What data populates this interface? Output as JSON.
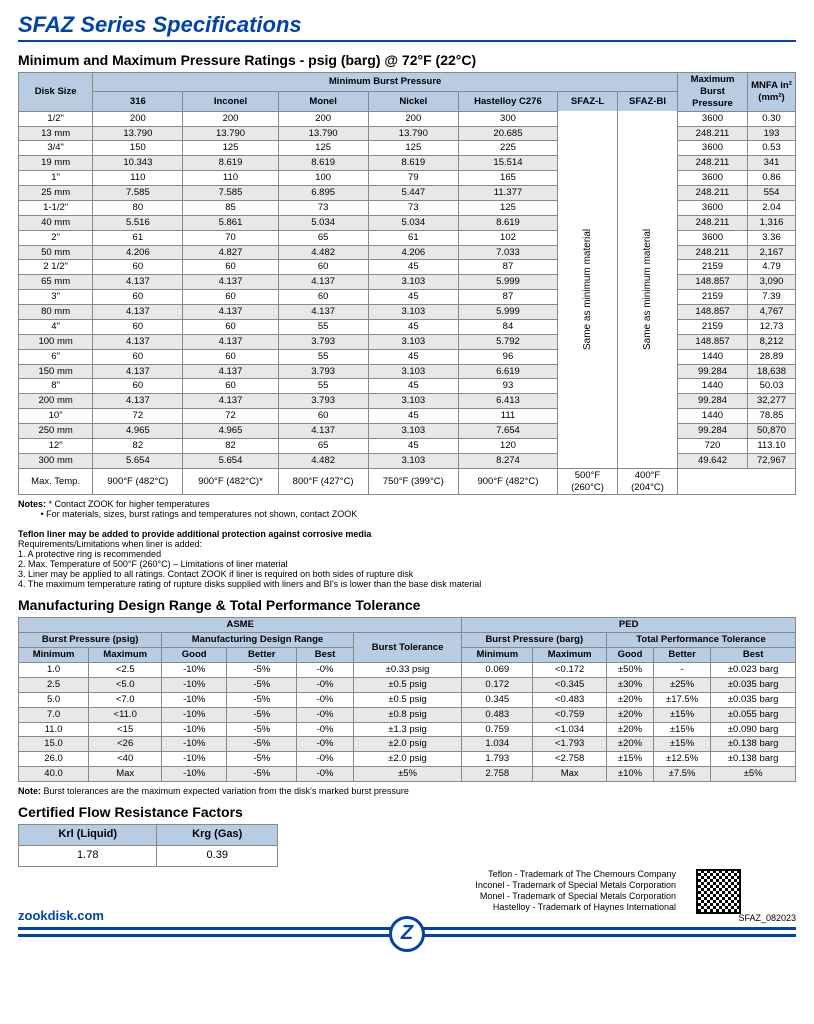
{
  "title": "SFAZ Series Specifications",
  "section1": "Minimum and Maximum Pressure Ratings - psig (barg) @ 72°F (22°C)",
  "t1": {
    "head": {
      "disk": "Disk Size",
      "minbp": "Minimum Burst Pressure",
      "maxbp": "Maximum Burst Pressure",
      "mnfa": "MNFA in² (mm²)",
      "c316": "316",
      "inconel": "Inconel",
      "monel": "Monel",
      "nickel": "Nickel",
      "hc276": "Hastelloy C276",
      "sfazl": "SFAZ-L",
      "sfazbi": "SFAZ-BI"
    },
    "sametext": "Same as minimum material",
    "rows": [
      [
        "1/2\"",
        "200",
        "200",
        "200",
        "200",
        "300",
        "3600",
        "0.30"
      ],
      [
        "13 mm",
        "13.790",
        "13.790",
        "13.790",
        "13.790",
        "20.685",
        "248.211",
        "193"
      ],
      [
        "3/4\"",
        "150",
        "125",
        "125",
        "125",
        "225",
        "3600",
        "0.53"
      ],
      [
        "19 mm",
        "10.343",
        "8.619",
        "8.619",
        "8.619",
        "15.514",
        "248.211",
        "341"
      ],
      [
        "1\"",
        "110",
        "110",
        "100",
        "79",
        "165",
        "3600",
        "0.86"
      ],
      [
        "25 mm",
        "7.585",
        "7.585",
        "6.895",
        "5.447",
        "11.377",
        "248.211",
        "554"
      ],
      [
        "1-1/2\"",
        "80",
        "85",
        "73",
        "73",
        "125",
        "3600",
        "2.04"
      ],
      [
        "40 mm",
        "5.516",
        "5.861",
        "5.034",
        "5.034",
        "8.619",
        "248.211",
        "1,316"
      ],
      [
        "2\"",
        "61",
        "70",
        "65",
        "61",
        "102",
        "3600",
        "3.36"
      ],
      [
        "50 mm",
        "4.206",
        "4.827",
        "4.482",
        "4.206",
        "7.033",
        "248.211",
        "2,167"
      ],
      [
        "2 1/2\"",
        "60",
        "60",
        "60",
        "45",
        "87",
        "2159",
        "4.79"
      ],
      [
        "65 mm",
        "4.137",
        "4.137",
        "4.137",
        "3.103",
        "5.999",
        "148.857",
        "3,090"
      ],
      [
        "3\"",
        "60",
        "60",
        "60",
        "45",
        "87",
        "2159",
        "7.39"
      ],
      [
        "80 mm",
        "4.137",
        "4.137",
        "4.137",
        "3.103",
        "5.999",
        "148.857",
        "4,767"
      ],
      [
        "4\"",
        "60",
        "60",
        "55",
        "45",
        "84",
        "2159",
        "12.73"
      ],
      [
        "100 mm",
        "4.137",
        "4.137",
        "3.793",
        "3.103",
        "5.792",
        "148.857",
        "8,212"
      ],
      [
        "6\"",
        "60",
        "60",
        "55",
        "45",
        "96",
        "1440",
        "28.89"
      ],
      [
        "150 mm",
        "4.137",
        "4.137",
        "3.793",
        "3.103",
        "6.619",
        "99.284",
        "18,638"
      ],
      [
        "8\"",
        "60",
        "60",
        "55",
        "45",
        "93",
        "1440",
        "50.03"
      ],
      [
        "200 mm",
        "4.137",
        "4.137",
        "3.793",
        "3.103",
        "6.413",
        "99.284",
        "32,277"
      ],
      [
        "10\"",
        "72",
        "72",
        "60",
        "45",
        "111",
        "1440",
        "78.85"
      ],
      [
        "250 mm",
        "4.965",
        "4.965",
        "4.137",
        "3.103",
        "7.654",
        "99.284",
        "50,870"
      ],
      [
        "12\"",
        "82",
        "82",
        "65",
        "45",
        "120",
        "720",
        "113.10"
      ],
      [
        "300 mm",
        "5.654",
        "5.654",
        "4.482",
        "3.103",
        "8.274",
        "49.642",
        "72,967"
      ]
    ],
    "maxtemp": [
      "Max. Temp.",
      "900°F (482°C)",
      "900°F (482°C)*",
      "800°F (427°C)",
      "750°F (399°C)",
      "900°F (482°C)",
      "500°F (260°C)",
      "400°F (204°C)"
    ]
  },
  "notes1": {
    "label": "Notes:",
    "b1": "* Contact ZOOK for higher temperatures",
    "b2": "• For materials, sizes, burst ratings and temperatures not shown, contact ZOOK",
    "teflon": "Teflon liner may be added to provide additional protection against corrosive media",
    "req": "Requirements/Limitations when liner is added:",
    "i1": "1. A protective ring is recommended",
    "i2": "2. Max. Temperature of 500°F (260°C) – Limitations of liner material",
    "i3": "3. Liner may be applied to all ratings. Contact ZOOK if liner is required on both sides of rupture disk",
    "i4": "4. The maximum temperature rating of rupture disks supplied with liners and BI's is lower than the base disk material"
  },
  "section2": "Manufacturing Design Range & Total Performance Tolerance",
  "t2": {
    "asme": "ASME",
    "ped": "PED",
    "bp_psig": "Burst Pressure (psig)",
    "mdr": "Manufacturing Design Range",
    "bt": "Burst Tolerance",
    "bp_barg": "Burst Pressure (barg)",
    "tpt": "Total Performance Tolerance",
    "min": "Minimum",
    "max": "Maximum",
    "good": "Good",
    "better": "Better",
    "best": "Best",
    "rows": [
      [
        "1.0",
        "<2.5",
        "-10%",
        "-5%",
        "-0%",
        "±0.33 psig",
        "0.069",
        "<0.172",
        "±50%",
        "-",
        "±0.023 barg"
      ],
      [
        "2.5",
        "<5.0",
        "-10%",
        "-5%",
        "-0%",
        "±0.5 psig",
        "0.172",
        "<0.345",
        "±30%",
        "±25%",
        "±0.035 barg"
      ],
      [
        "5.0",
        "<7.0",
        "-10%",
        "-5%",
        "-0%",
        "±0.5 psig",
        "0.345",
        "<0.483",
        "±20%",
        "±17.5%",
        "±0.035 barg"
      ],
      [
        "7.0",
        "<11.0",
        "-10%",
        "-5%",
        "-0%",
        "±0.8 psig",
        "0.483",
        "<0.759",
        "±20%",
        "±15%",
        "±0.055 barg"
      ],
      [
        "11.0",
        "<15",
        "-10%",
        "-5%",
        "-0%",
        "±1.3 psig",
        "0.759",
        "<1.034",
        "±20%",
        "±15%",
        "±0.090 barg"
      ],
      [
        "15.0",
        "<26",
        "-10%",
        "-5%",
        "-0%",
        "±2.0 psig",
        "1.034",
        "<1.793",
        "±20%",
        "±15%",
        "±0.138 barg"
      ],
      [
        "26.0",
        "<40",
        "-10%",
        "-5%",
        "-0%",
        "±2.0 psig",
        "1.793",
        "<2.758",
        "±15%",
        "±12.5%",
        "±0.138 barg"
      ],
      [
        "40.0",
        "Max",
        "-10%",
        "-5%",
        "-0%",
        "±5%",
        "2.758",
        "Max",
        "±10%",
        "±7.5%",
        "±5%"
      ]
    ]
  },
  "note2": "Note: Burst tolerances are the maximum expected variation from the disk's marked burst pressure",
  "section3": "Certified Flow Resistance Factors",
  "t3": {
    "krl": "Krl (Liquid)",
    "krg": "Krg (Gas)",
    "v1": "1.78",
    "v2": "0.39"
  },
  "tm": {
    "l1": "Teflon - Trademark of The Chemours Company",
    "l2": "Inconel - Trademark of Special Metals Corporation",
    "l3": "Monel - Trademark of Special Metals Corporation",
    "l4": "Hastelloy - Trademark of Haynes International"
  },
  "site": "zookdisk.com",
  "docid": "SFAZ_082023"
}
